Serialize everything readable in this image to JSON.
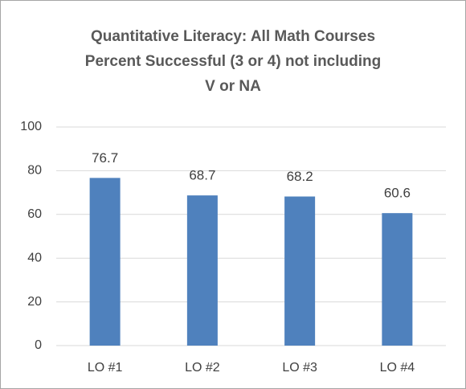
{
  "chart_data": {
    "type": "bar",
    "title": [
      "Quantitative Literacy:  All Math Courses",
      "Percent Successful (3 or 4) not including",
      "V or NA"
    ],
    "categories": [
      "LO #1",
      "LO #2",
      "LO #3",
      "LO #4"
    ],
    "values": [
      76.7,
      68.7,
      68.2,
      60.6
    ],
    "color": "#4f81bd",
    "ylim": [
      0,
      100
    ],
    "yticks": [
      0,
      20,
      40,
      60,
      80,
      100
    ],
    "grid": true
  }
}
